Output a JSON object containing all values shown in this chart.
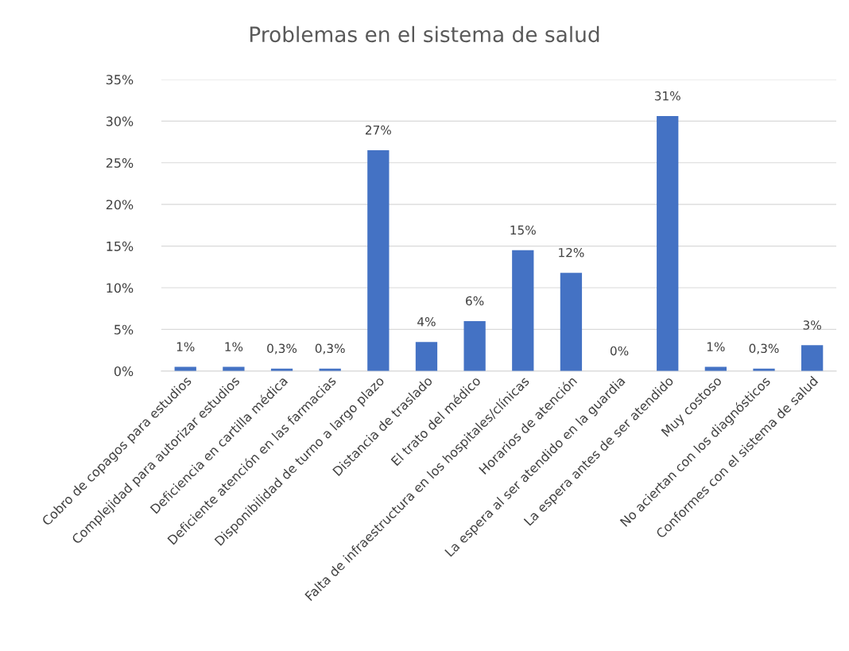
{
  "chart_data": {
    "type": "bar",
    "title": "Problemas en el sistema de salud",
    "categories": [
      "Cobro de copagos para estudios",
      "Complejidad para autorizar estudios",
      "Deficiencia en cartilla médica",
      "Deficiente atención en las farmacias",
      "Disponibilidad de turno a largo plazo",
      "Distancia de traslado",
      "El trato del médico",
      "Falta de infraestructura en los hospitales/clínicas",
      "Horarios de atención",
      "La espera al ser atendido en la guardia",
      "La espera antes de ser atendido",
      "Muy costoso",
      "No aciertan con los diagnósticos",
      "Conformes con el sistema de salud"
    ],
    "values": [
      0.5,
      0.5,
      0.3,
      0.3,
      26.5,
      3.5,
      6.0,
      14.5,
      11.8,
      0,
      30.6,
      0.5,
      0.3,
      3.1
    ],
    "value_labels": [
      "1%",
      "1%",
      "0,3%",
      "0,3%",
      "27%",
      "4%",
      "6%",
      "15%",
      "12%",
      "0%",
      "31%",
      "1%",
      "0,3%",
      "3%"
    ],
    "color": "#4472c4",
    "ylim": [
      0,
      35
    ],
    "yticks": [
      {
        "value": 0,
        "label": "0%"
      },
      {
        "value": 5,
        "label": "5%"
      },
      {
        "value": 10,
        "label": "10%"
      },
      {
        "value": 15,
        "label": "15%"
      },
      {
        "value": 20,
        "label": "20%"
      },
      {
        "value": 25,
        "label": "25%"
      },
      {
        "value": 30,
        "label": "30%"
      },
      {
        "value": 35,
        "label": "35%"
      }
    ],
    "grid": "y",
    "legend": false
  }
}
